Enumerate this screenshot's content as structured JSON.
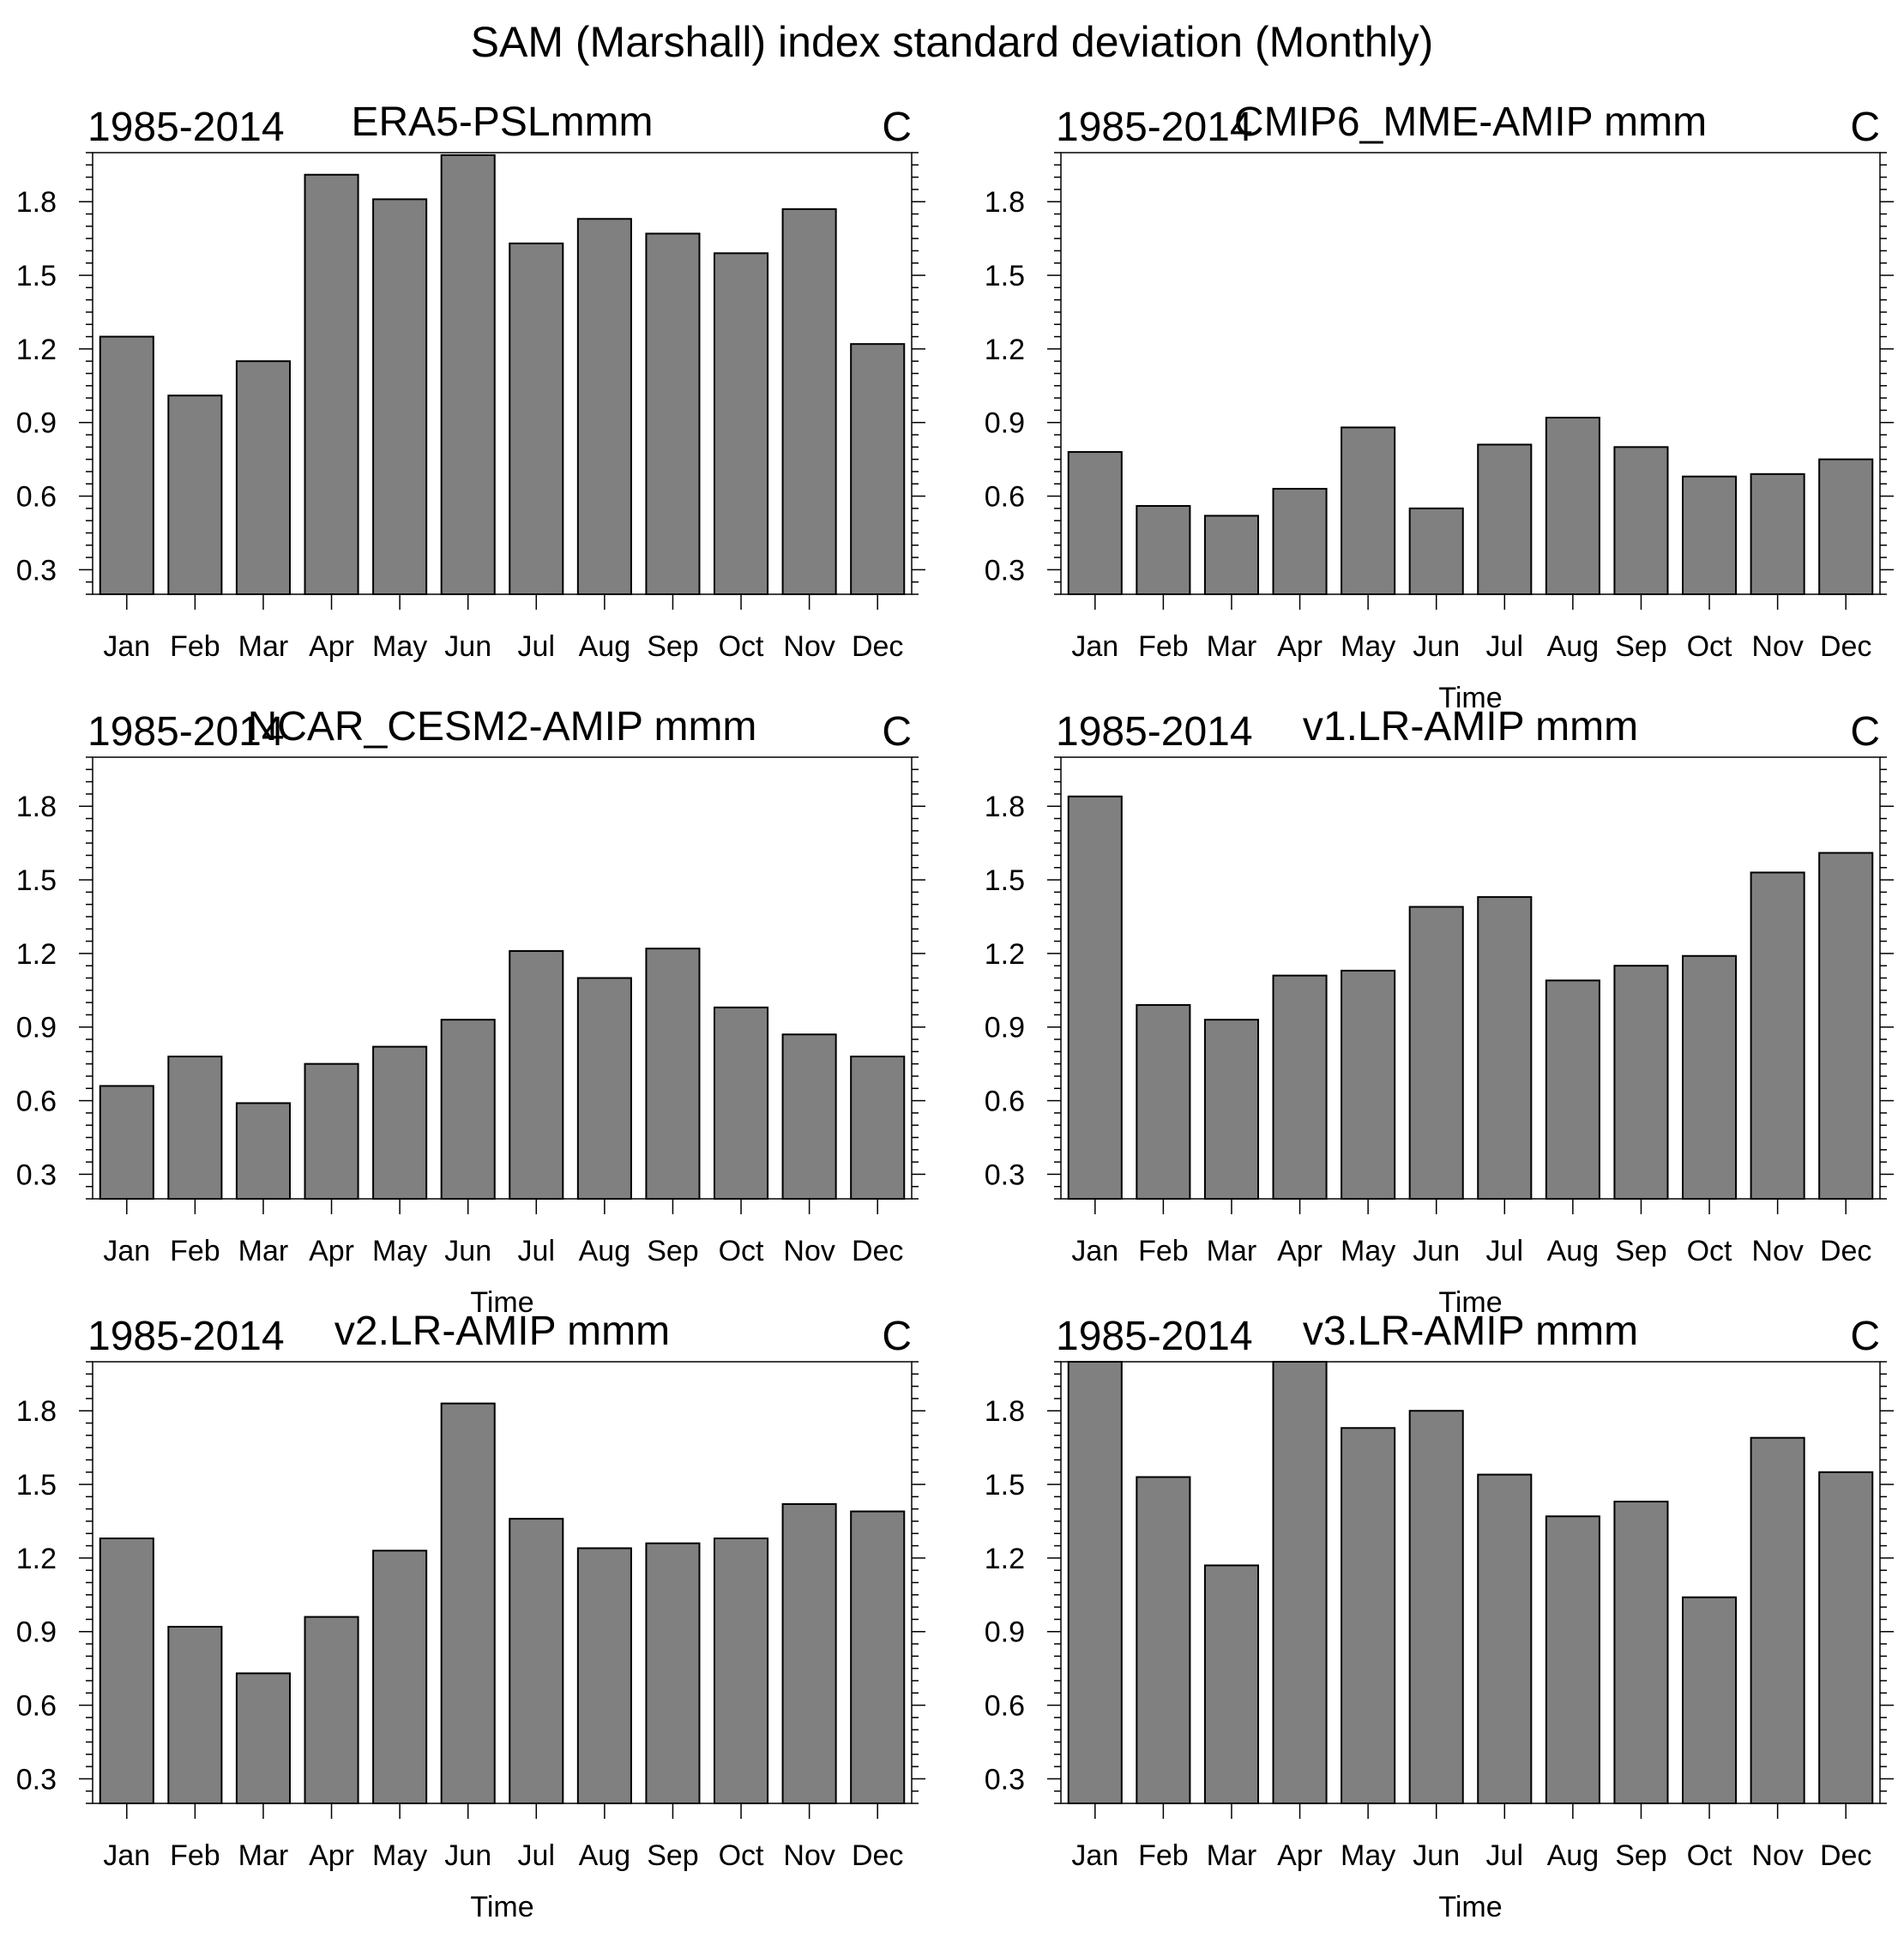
{
  "figure_title": "SAM (Marshall) index standard deviation (Monthly)",
  "colors": {
    "bar_fill": "#808080",
    "bar_stroke": "#000000",
    "background": "#ffffff"
  },
  "chart_data": [
    {
      "type": "bar",
      "title_left": "1985-2014",
      "title_center": "ERA5-PSLmmm",
      "title_right": "C",
      "xlabel": "",
      "ylabel": "",
      "categories": [
        "Jan",
        "Feb",
        "Mar",
        "Apr",
        "May",
        "Jun",
        "Jul",
        "Aug",
        "Sep",
        "Oct",
        "Nov",
        "Dec"
      ],
      "values": [
        1.25,
        1.01,
        1.15,
        1.91,
        1.81,
        1.99,
        1.63,
        1.73,
        1.67,
        1.59,
        1.77,
        1.22
      ],
      "ylim": [
        0.2,
        2.0
      ],
      "yticks": [
        "0.3",
        "0.6",
        "0.9",
        "1.2",
        "1.5",
        "1.8"
      ]
    },
    {
      "type": "bar",
      "title_left": "1985-2014",
      "title_center": "CMIP6_MME-AMIP  mmm",
      "title_right": "C",
      "xlabel": "Time",
      "ylabel": "",
      "categories": [
        "Jan",
        "Feb",
        "Mar",
        "Apr",
        "May",
        "Jun",
        "Jul",
        "Aug",
        "Sep",
        "Oct",
        "Nov",
        "Dec"
      ],
      "values": [
        0.78,
        0.56,
        0.52,
        0.63,
        0.88,
        0.55,
        0.81,
        0.92,
        0.8,
        0.68,
        0.69,
        0.75
      ],
      "ylim": [
        0.2,
        2.0
      ],
      "yticks": [
        "0.3",
        "0.6",
        "0.9",
        "1.2",
        "1.5",
        "1.8"
      ]
    },
    {
      "type": "bar",
      "title_left": "1985-2014",
      "title_center": "NCAR_CESM2-AMIP  mmm",
      "title_right": "C",
      "xlabel": "Time",
      "ylabel": "",
      "categories": [
        "Jan",
        "Feb",
        "Mar",
        "Apr",
        "May",
        "Jun",
        "Jul",
        "Aug",
        "Sep",
        "Oct",
        "Nov",
        "Dec"
      ],
      "values": [
        0.66,
        0.78,
        0.59,
        0.75,
        0.82,
        0.93,
        1.21,
        1.1,
        1.22,
        0.98,
        0.87,
        0.78
      ],
      "ylim": [
        0.2,
        2.0
      ],
      "yticks": [
        "0.3",
        "0.6",
        "0.9",
        "1.2",
        "1.5",
        "1.8"
      ]
    },
    {
      "type": "bar",
      "title_left": "1985-2014",
      "title_center": "v1.LR-AMIP  mmm",
      "title_right": "C",
      "xlabel": "Time",
      "ylabel": "",
      "categories": [
        "Jan",
        "Feb",
        "Mar",
        "Apr",
        "May",
        "Jun",
        "Jul",
        "Aug",
        "Sep",
        "Oct",
        "Nov",
        "Dec"
      ],
      "values": [
        1.84,
        0.99,
        0.93,
        1.11,
        1.13,
        1.39,
        1.43,
        1.09,
        1.15,
        1.19,
        1.53,
        1.61
      ],
      "ylim": [
        0.2,
        2.0
      ],
      "yticks": [
        "0.3",
        "0.6",
        "0.9",
        "1.2",
        "1.5",
        "1.8"
      ]
    },
    {
      "type": "bar",
      "title_left": "1985-2014",
      "title_center": "v2.LR-AMIP  mmm",
      "title_right": "C",
      "xlabel": "Time",
      "ylabel": "",
      "categories": [
        "Jan",
        "Feb",
        "Mar",
        "Apr",
        "May",
        "Jun",
        "Jul",
        "Aug",
        "Sep",
        "Oct",
        "Nov",
        "Dec"
      ],
      "values": [
        1.28,
        0.92,
        0.73,
        0.96,
        1.23,
        1.83,
        1.36,
        1.24,
        1.26,
        1.28,
        1.42,
        1.39
      ],
      "ylim": [
        0.2,
        2.0
      ],
      "yticks": [
        "0.3",
        "0.6",
        "0.9",
        "1.2",
        "1.5",
        "1.8"
      ]
    },
    {
      "type": "bar",
      "title_left": "1985-2014",
      "title_center": "v3.LR-AMIP  mmm",
      "title_right": "C",
      "xlabel": "Time",
      "ylabel": "",
      "categories": [
        "Jan",
        "Feb",
        "Mar",
        "Apr",
        "May",
        "Jun",
        "Jul",
        "Aug",
        "Sep",
        "Oct",
        "Nov",
        "Dec"
      ],
      "values": [
        2.0,
        1.53,
        1.17,
        2.0,
        1.73,
        1.8,
        1.54,
        1.37,
        1.43,
        1.04,
        1.69,
        1.55
      ],
      "ylim": [
        0.2,
        2.0
      ],
      "yticks": [
        "0.3",
        "0.6",
        "0.9",
        "1.2",
        "1.5",
        "1.8"
      ]
    }
  ]
}
